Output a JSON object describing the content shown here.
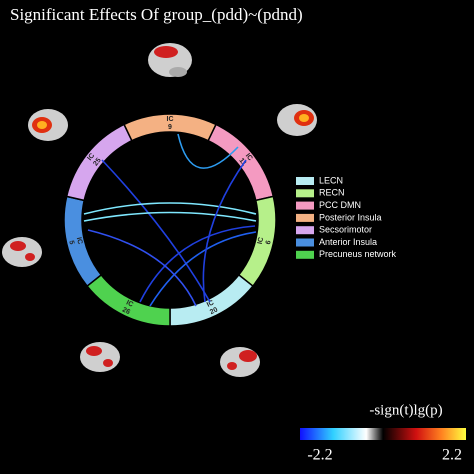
{
  "title": "Significant Effects Of group_(pdd)~(pdnd)",
  "nodes": [
    {
      "prefix": "IC",
      "number": "9",
      "color": "#f4b183"
    },
    {
      "prefix": "IC",
      "number": "11",
      "color": "#f49ac1"
    },
    {
      "prefix": "IC",
      "number": "6",
      "color": "#b6f08a"
    },
    {
      "prefix": "IC",
      "number": "20",
      "color": "#b8ecf2"
    },
    {
      "prefix": "IC",
      "number": "26",
      "color": "#4fd24f"
    },
    {
      "prefix": "IC",
      "number": "5",
      "color": "#4a8fe0"
    },
    {
      "prefix": "IC",
      "number": "25",
      "color": "#d6a6ee"
    }
  ],
  "legend": [
    {
      "label": "LECN",
      "color": "#b8ecf2"
    },
    {
      "label": "RECN",
      "color": "#b6f08a"
    },
    {
      "label": "PCC DMN",
      "color": "#f49ac1"
    },
    {
      "label": "Posterior Insula",
      "color": "#f4b183"
    },
    {
      "label": "Secsorimotor",
      "color": "#d6a6ee"
    },
    {
      "label": "Anterior Insula",
      "color": "#4a8fe0"
    },
    {
      "label": "Precuneus network",
      "color": "#4fd24f"
    }
  ],
  "colorbar": {
    "label": "-sign(t)lg(p)",
    "min_label": "-2.2",
    "max_label": "2.2"
  }
}
